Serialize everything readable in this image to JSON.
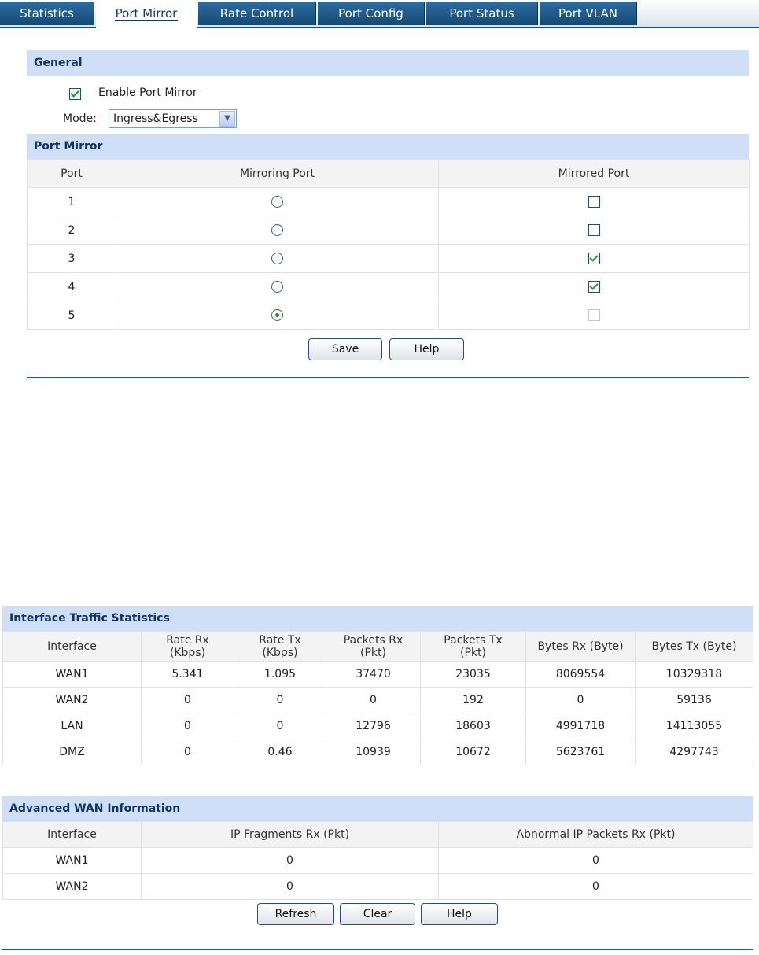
{
  "tabs": [
    {
      "label": "Statistics",
      "active": false
    },
    {
      "label": "Port Mirror",
      "active": true
    },
    {
      "label": "Rate Control",
      "active": false
    },
    {
      "label": "Port Config",
      "active": false
    },
    {
      "label": "Port Status",
      "active": false
    },
    {
      "label": "Port VLAN",
      "active": false
    }
  ],
  "general": {
    "title": "General",
    "enable_label": "Enable Port Mirror",
    "enable_checked": true,
    "mode_label": "Mode:",
    "mode_value": "Ingress&Egress"
  },
  "port_mirror": {
    "title": "Port Mirror",
    "columns": [
      "Port",
      "Mirroring Port",
      "Mirrored Port"
    ],
    "rows": [
      {
        "port": "1",
        "mirroring": false,
        "mirrored": false,
        "mirrored_disabled": false
      },
      {
        "port": "2",
        "mirroring": false,
        "mirrored": false,
        "mirrored_disabled": false
      },
      {
        "port": "3",
        "mirroring": false,
        "mirrored": true,
        "mirrored_disabled": false
      },
      {
        "port": "4",
        "mirroring": false,
        "mirrored": true,
        "mirrored_disabled": false
      },
      {
        "port": "5",
        "mirroring": true,
        "mirrored": false,
        "mirrored_disabled": true
      }
    ],
    "save_label": "Save",
    "help_label": "Help"
  },
  "traffic": {
    "title": "Interface Traffic Statistics",
    "columns": [
      [
        "Interface"
      ],
      [
        "Rate Rx",
        "(Kbps)"
      ],
      [
        "Rate Tx",
        "(Kbps)"
      ],
      [
        "Packets Rx",
        "(Pkt)"
      ],
      [
        "Packets Tx",
        "(Pkt)"
      ],
      [
        "Bytes Rx (Byte)"
      ],
      [
        "Bytes Tx (Byte)"
      ]
    ],
    "rows": [
      [
        "WAN1",
        "5.341",
        "1.095",
        "37470",
        "23035",
        "8069554",
        "10329318"
      ],
      [
        "WAN2",
        "0",
        "0",
        "0",
        "192",
        "0",
        "59136"
      ],
      [
        "LAN",
        "0",
        "0",
        "12796",
        "18603",
        "4991718",
        "14113055"
      ],
      [
        "DMZ",
        "0",
        "0.46",
        "10939",
        "10672",
        "5623761",
        "4297743"
      ]
    ]
  },
  "advanced_wan": {
    "title": "Advanced WAN Information",
    "columns": [
      "Interface",
      "IP Fragments Rx (Pkt)",
      "Abnormal IP Packets Rx (Pkt)"
    ],
    "rows": [
      [
        "WAN1",
        "0",
        "0"
      ],
      [
        "WAN2",
        "0",
        "0"
      ]
    ],
    "refresh_label": "Refresh",
    "clear_label": "Clear",
    "help_label": "Help"
  }
}
